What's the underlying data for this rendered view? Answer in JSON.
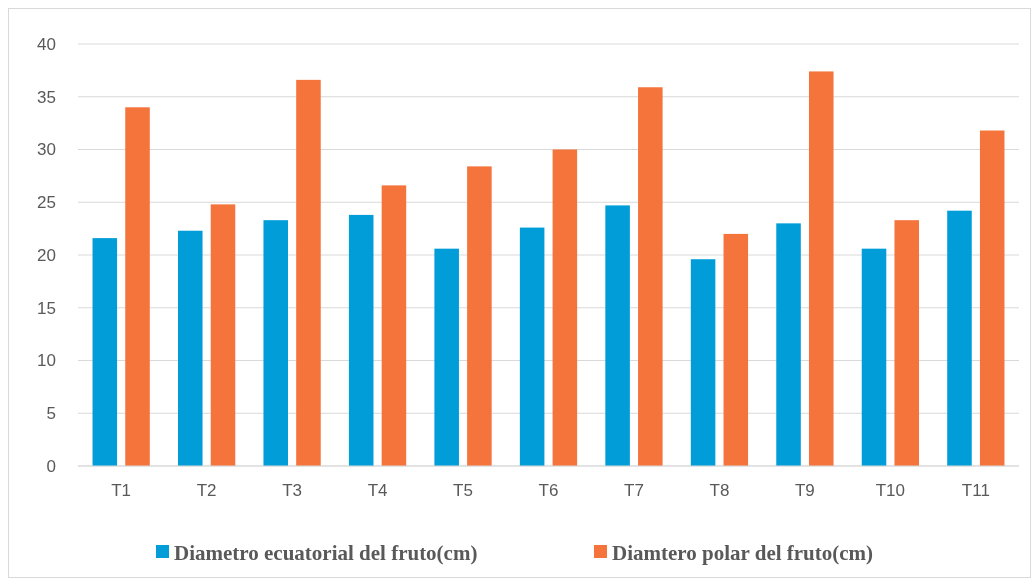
{
  "chart_data": {
    "type": "bar",
    "categories": [
      "T1",
      "T2",
      "T3",
      "T4",
      "T5",
      "T6",
      "T7",
      "T8",
      "T9",
      "T10",
      "T11"
    ],
    "series": [
      {
        "name": "Diametro ecuatorial del fruto(cm)",
        "color": "#009dd9",
        "values": [
          21.6,
          22.3,
          23.3,
          23.8,
          20.6,
          22.6,
          24.7,
          19.6,
          23.0,
          20.6,
          24.2
        ]
      },
      {
        "name": "Diamtero polar del fruto(cm)",
        "color": "#f4743b",
        "values": [
          34.0,
          24.8,
          36.6,
          26.6,
          28.4,
          30.0,
          35.9,
          22.0,
          37.4,
          23.3,
          31.8
        ]
      }
    ],
    "ylim": [
      0,
      40
    ],
    "yticks": [
      0,
      5,
      10,
      15,
      20,
      25,
      30,
      35,
      40
    ],
    "grid": "y",
    "legend": "bottom"
  }
}
